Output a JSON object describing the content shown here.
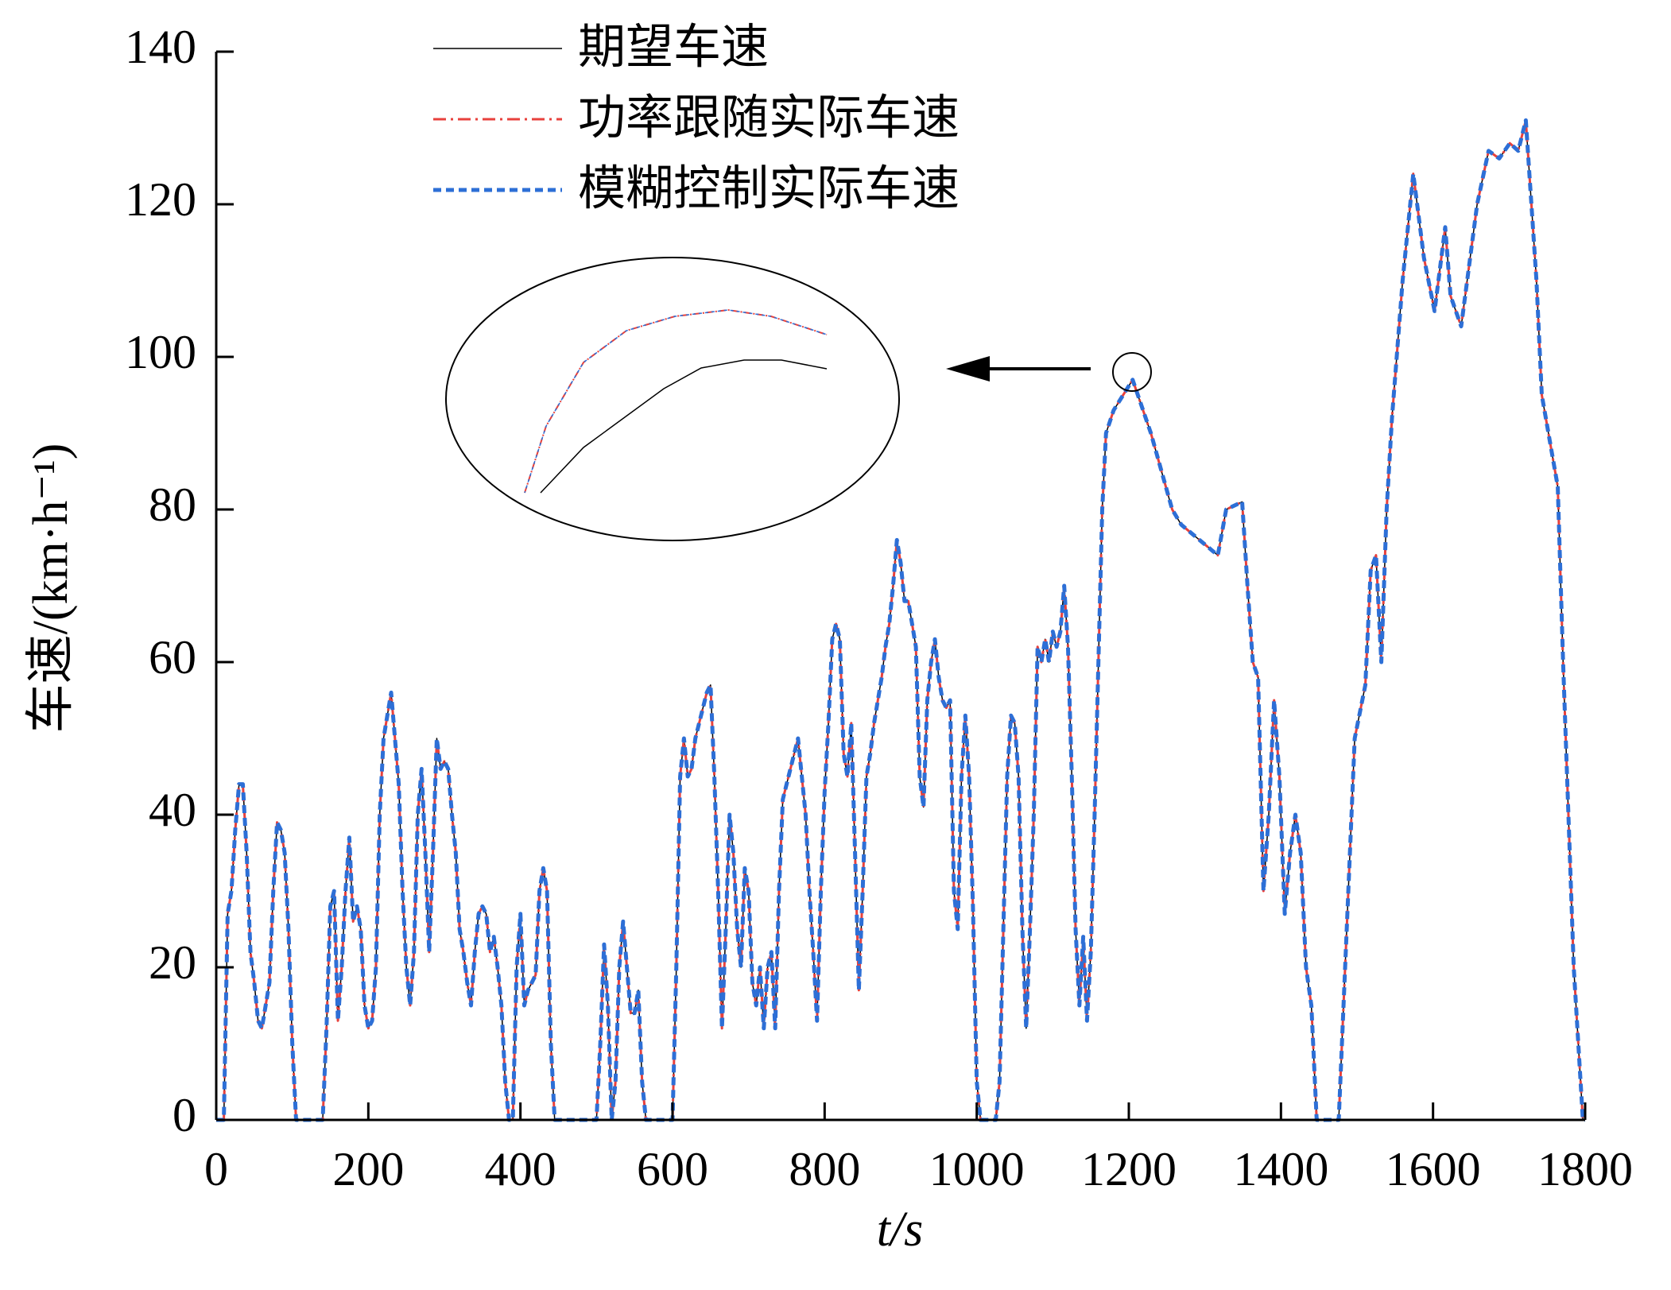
{
  "chart_data": {
    "type": "line",
    "xlabel": "t/s",
    "ylabel": "车速/(km·h⁻¹)",
    "xlim": [
      0,
      1800
    ],
    "ylim": [
      0,
      140
    ],
    "xticks": [
      0,
      200,
      400,
      600,
      800,
      1000,
      1200,
      1400,
      1600,
      1800
    ],
    "yticks": [
      0,
      20,
      40,
      60,
      80,
      100,
      120,
      140
    ],
    "legend": "top-left",
    "x": [
      0,
      10,
      15,
      20,
      25,
      30,
      35,
      40,
      45,
      50,
      55,
      60,
      65,
      70,
      75,
      80,
      85,
      90,
      95,
      100,
      105,
      140,
      145,
      150,
      155,
      160,
      165,
      170,
      175,
      180,
      185,
      190,
      195,
      200,
      205,
      210,
      215,
      220,
      225,
      230,
      235,
      240,
      245,
      250,
      255,
      260,
      265,
      270,
      275,
      280,
      285,
      290,
      295,
      300,
      305,
      310,
      315,
      320,
      325,
      330,
      335,
      340,
      345,
      350,
      355,
      360,
      365,
      370,
      375,
      380,
      385,
      390,
      395,
      400,
      405,
      410,
      415,
      420,
      425,
      430,
      435,
      440,
      445,
      500,
      505,
      510,
      515,
      520,
      525,
      530,
      535,
      540,
      545,
      550,
      555,
      560,
      565,
      600,
      605,
      610,
      615,
      620,
      625,
      630,
      635,
      640,
      645,
      650,
      655,
      660,
      665,
      670,
      675,
      680,
      685,
      690,
      695,
      700,
      705,
      710,
      715,
      720,
      725,
      730,
      735,
      740,
      745,
      750,
      755,
      760,
      765,
      770,
      775,
      780,
      785,
      790,
      795,
      800,
      805,
      810,
      815,
      820,
      825,
      830,
      835,
      840,
      845,
      850,
      855,
      860,
      865,
      870,
      875,
      880,
      885,
      890,
      895,
      900,
      905,
      910,
      915,
      920,
      925,
      930,
      935,
      940,
      945,
      950,
      955,
      960,
      965,
      970,
      975,
      980,
      985,
      990,
      995,
      1000,
      1005,
      1025,
      1030,
      1035,
      1040,
      1045,
      1050,
      1055,
      1060,
      1065,
      1070,
      1075,
      1080,
      1085,
      1090,
      1095,
      1100,
      1105,
      1110,
      1115,
      1120,
      1125,
      1130,
      1135,
      1140,
      1145,
      1150,
      1155,
      1160,
      1165,
      1170,
      1180,
      1205,
      1229,
      1257,
      1269,
      1293,
      1317,
      1328,
      1349,
      1356,
      1363,
      1370,
      1377,
      1384,
      1391,
      1398,
      1405,
      1412,
      1419,
      1426,
      1433,
      1440,
      1447,
      1476,
      1497,
      1511,
      1518,
      1525,
      1532,
      1539,
      1546,
      1560,
      1574,
      1588,
      1602,
      1616,
      1623,
      1637,
      1658,
      1673,
      1687,
      1701,
      1712,
      1722,
      1736,
      1743,
      1757,
      1764,
      1771,
      1785,
      1797,
      1800
    ],
    "series": [
      {
        "name": "期望车速",
        "color": "#000000",
        "style": "solid",
        "width": 1.5,
        "values": [
          0,
          0,
          27,
          30,
          38,
          44,
          44,
          35,
          22,
          18,
          13,
          12,
          15,
          18,
          30,
          39,
          38,
          35,
          25,
          10,
          0,
          0,
          12,
          28,
          30,
          13,
          20,
          30,
          37,
          26,
          28,
          25,
          15,
          12,
          13,
          20,
          40,
          50,
          53,
          56,
          50,
          44,
          30,
          20,
          15,
          22,
          40,
          46,
          35,
          22,
          35,
          50,
          46,
          47,
          46,
          40,
          35,
          25,
          22,
          18,
          15,
          22,
          27,
          28,
          27,
          22,
          24,
          20,
          15,
          5,
          0,
          0,
          20,
          27,
          15,
          17,
          18,
          19,
          30,
          33,
          30,
          10,
          0,
          0,
          10,
          23,
          15,
          0,
          5,
          20,
          26,
          20,
          14,
          14,
          17,
          5,
          0,
          0,
          20,
          45,
          50,
          45,
          46,
          50,
          52,
          54,
          56,
          57,
          45,
          30,
          12,
          25,
          40,
          35,
          25,
          20,
          33,
          30,
          18,
          15,
          20,
          12,
          20,
          22,
          12,
          30,
          42,
          44,
          46,
          48,
          50,
          45,
          40,
          30,
          22,
          13,
          30,
          43,
          52,
          63,
          65,
          63,
          48,
          45,
          52,
          35,
          17,
          30,
          45,
          48,
          52,
          55,
          58,
          62,
          65,
          70,
          76,
          73,
          68,
          68,
          65,
          62,
          45,
          41,
          55,
          60,
          63,
          58,
          55,
          54,
          55,
          30,
          25,
          45,
          53,
          45,
          28,
          5,
          0,
          0,
          5,
          25,
          45,
          53,
          52,
          45,
          25,
          12,
          25,
          40,
          62,
          60,
          63,
          60,
          64,
          62,
          64,
          70,
          62,
          45,
          25,
          15,
          24,
          13,
          22,
          40,
          60,
          80,
          90,
          93,
          97,
          90,
          80,
          78,
          76,
          74,
          80,
          81,
          70,
          60,
          58,
          30,
          40,
          55,
          45,
          27,
          35,
          40,
          35,
          20,
          15,
          0,
          0,
          50,
          57,
          72,
          74,
          60,
          80,
          92,
          110,
          124,
          113,
          106,
          117,
          108,
          104,
          120,
          127,
          126,
          128,
          127,
          131,
          110,
          95,
          87,
          83,
          60,
          20,
          0,
          0
        ]
      },
      {
        "name": "功率跟随实际车速",
        "color": "#e8413c",
        "style": "dashdot",
        "width": 3,
        "values": [
          0,
          0,
          27,
          30,
          38,
          44,
          44,
          35,
          22,
          18,
          13,
          12,
          15,
          18,
          30,
          39,
          38,
          35,
          25,
          10,
          0,
          0,
          12,
          28,
          30,
          13,
          20,
          30,
          37,
          26,
          28,
          25,
          15,
          12,
          13,
          20,
          40,
          50,
          53,
          56,
          50,
          44,
          30,
          20,
          15,
          22,
          40,
          46,
          35,
          22,
          35,
          50,
          46,
          47,
          46,
          40,
          35,
          25,
          22,
          18,
          15,
          22,
          27,
          28,
          27,
          22,
          24,
          20,
          15,
          5,
          0,
          0,
          20,
          27,
          15,
          17,
          18,
          19,
          30,
          33,
          30,
          10,
          0,
          0,
          10,
          23,
          15,
          0,
          5,
          20,
          26,
          20,
          14,
          14,
          17,
          5,
          0,
          0,
          20,
          45,
          50,
          45,
          46,
          50,
          52,
          54,
          56,
          57,
          45,
          30,
          12,
          25,
          40,
          35,
          25,
          20,
          33,
          30,
          18,
          15,
          20,
          12,
          20,
          22,
          12,
          30,
          42,
          44,
          46,
          48,
          50,
          45,
          40,
          30,
          22,
          13,
          30,
          43,
          52,
          63,
          65,
          63,
          48,
          45,
          52,
          35,
          17,
          30,
          45,
          48,
          52,
          55,
          58,
          62,
          65,
          70,
          76,
          73,
          68,
          68,
          65,
          62,
          45,
          41,
          55,
          60,
          63,
          58,
          55,
          54,
          55,
          30,
          25,
          45,
          53,
          45,
          28,
          5,
          0,
          0,
          5,
          25,
          45,
          53,
          52,
          45,
          25,
          12,
          25,
          40,
          62,
          60,
          63,
          60,
          64,
          62,
          64,
          70,
          62,
          45,
          25,
          15,
          24,
          13,
          22,
          40,
          60,
          80,
          90,
          93,
          97,
          90,
          80,
          78,
          76,
          74,
          80,
          81,
          70,
          60,
          58,
          30,
          40,
          55,
          45,
          27,
          35,
          40,
          35,
          20,
          15,
          0,
          0,
          50,
          57,
          72,
          74,
          60,
          80,
          92,
          110,
          124,
          113,
          106,
          117,
          108,
          104,
          120,
          127,
          126,
          128,
          127,
          131,
          110,
          95,
          87,
          83,
          60,
          20,
          0,
          0
        ]
      },
      {
        "name": "模糊控制实际车速",
        "color": "#2d6fd6",
        "style": "dashed",
        "width": 5,
        "values": [
          0,
          0,
          27,
          30,
          38,
          44,
          44,
          35,
          22,
          18,
          13,
          12,
          15,
          18,
          30,
          39,
          38,
          35,
          25,
          10,
          0,
          0,
          12,
          28,
          30,
          13,
          20,
          30,
          37,
          26,
          28,
          25,
          15,
          12,
          13,
          20,
          40,
          50,
          53,
          56,
          50,
          44,
          30,
          20,
          15,
          22,
          40,
          46,
          35,
          22,
          35,
          50,
          46,
          47,
          46,
          40,
          35,
          25,
          22,
          18,
          15,
          22,
          27,
          28,
          27,
          22,
          24,
          20,
          15,
          5,
          0,
          0,
          20,
          27,
          15,
          17,
          18,
          19,
          30,
          33,
          30,
          10,
          0,
          0,
          10,
          23,
          15,
          0,
          5,
          20,
          26,
          20,
          14,
          14,
          17,
          5,
          0,
          0,
          20,
          45,
          50,
          45,
          46,
          50,
          52,
          54,
          56,
          57,
          45,
          30,
          12,
          25,
          40,
          35,
          25,
          20,
          33,
          30,
          18,
          15,
          20,
          12,
          20,
          22,
          12,
          30,
          42,
          44,
          46,
          48,
          50,
          45,
          40,
          30,
          22,
          13,
          30,
          43,
          52,
          63,
          65,
          63,
          48,
          45,
          52,
          35,
          17,
          30,
          45,
          48,
          52,
          55,
          58,
          62,
          65,
          70,
          76,
          73,
          68,
          68,
          65,
          62,
          45,
          41,
          55,
          60,
          63,
          58,
          55,
          54,
          55,
          30,
          25,
          45,
          53,
          45,
          28,
          5,
          0,
          0,
          5,
          25,
          45,
          53,
          52,
          45,
          25,
          12,
          25,
          40,
          62,
          60,
          63,
          60,
          64,
          62,
          64,
          70,
          62,
          45,
          25,
          15,
          24,
          13,
          22,
          40,
          60,
          80,
          90,
          93,
          97,
          90,
          80,
          78,
          76,
          74,
          80,
          81,
          70,
          60,
          58,
          30,
          40,
          55,
          45,
          27,
          35,
          40,
          35,
          20,
          15,
          0,
          0,
          50,
          57,
          72,
          74,
          60,
          80,
          92,
          110,
          124,
          113,
          106,
          117,
          108,
          104,
          120,
          127,
          126,
          128,
          127,
          131,
          110,
          95,
          87,
          83,
          60,
          20,
          0,
          0
        ]
      }
    ]
  }
}
